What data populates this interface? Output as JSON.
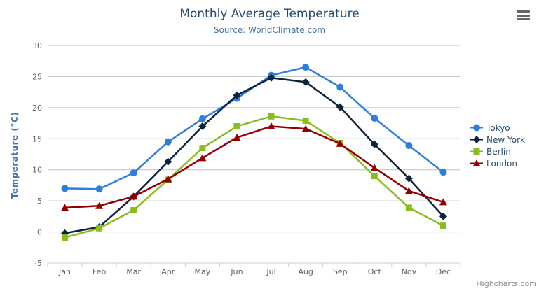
{
  "title": "Monthly Average Temperature",
  "subtitle": "Source: WorldClimate.com",
  "credits": "Highcharts.com",
  "export_menu_icon": "hamburger-icon",
  "colors": {
    "title": "#274b6d",
    "subtitle": "#4d759e",
    "y_axis_title": "#4572A7",
    "axis_labels": "#606060",
    "grid_line": "#C0C0C0",
    "axis_line": "#C0D0E0",
    "legend_text": "#274b6d",
    "credits_text": "#8a8a8a",
    "background": "#ffffff"
  },
  "chart_data": {
    "type": "line",
    "title": "Monthly Average Temperature",
    "subtitle": "Source: WorldClimate.com",
    "xlabel": "",
    "ylabel": "Temperature (°C)",
    "categories": [
      "Jan",
      "Feb",
      "Mar",
      "Apr",
      "May",
      "Jun",
      "Jul",
      "Aug",
      "Sep",
      "Oct",
      "Nov",
      "Dec"
    ],
    "ylim": [
      -5,
      30
    ],
    "ytick_interval": 5,
    "yticks": [
      -5,
      0,
      5,
      10,
      15,
      20,
      25,
      30
    ],
    "grid": true,
    "legend_position": "right",
    "series": [
      {
        "name": "Tokyo",
        "color": "#2f7ed8",
        "marker": "circle",
        "values": [
          7.0,
          6.9,
          9.5,
          14.5,
          18.2,
          21.5,
          25.2,
          26.5,
          23.3,
          18.3,
          13.9,
          9.6
        ]
      },
      {
        "name": "New York",
        "color": "#0d233a",
        "marker": "diamond",
        "values": [
          -0.2,
          0.8,
          5.7,
          11.3,
          17.0,
          22.0,
          24.8,
          24.1,
          20.1,
          14.1,
          8.6,
          2.5
        ]
      },
      {
        "name": "Berlin",
        "color": "#8bbc21",
        "marker": "square",
        "values": [
          -0.9,
          0.6,
          3.5,
          8.4,
          13.5,
          17.0,
          18.6,
          17.9,
          14.3,
          9.0,
          3.9,
          1.0
        ]
      },
      {
        "name": "London",
        "color": "#910000",
        "marker": "triangle",
        "values": [
          3.9,
          4.2,
          5.7,
          8.5,
          11.9,
          15.2,
          17.0,
          16.6,
          14.2,
          10.3,
          6.6,
          4.8
        ]
      }
    ]
  }
}
